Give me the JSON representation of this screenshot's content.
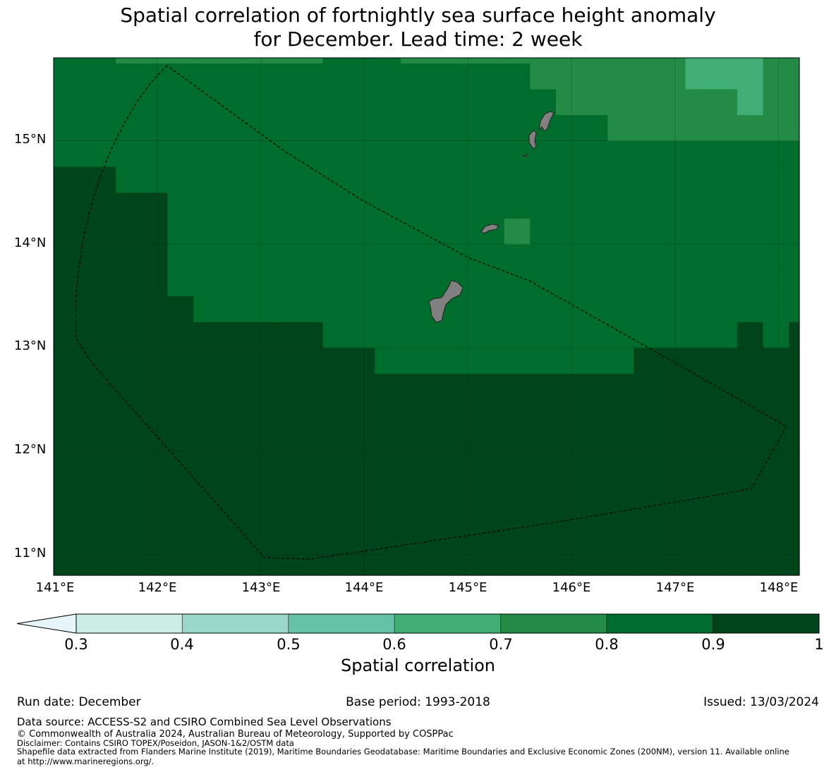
{
  "title": {
    "line1": "Spatial correlation of fortnightly sea surface height anomaly",
    "line2": "for December. Lead time: 2 week"
  },
  "map": {
    "lon_labels": [
      "141°E",
      "142°E",
      "143°E",
      "144°E",
      "145°E",
      "146°E",
      "147°E",
      "148°E"
    ],
    "lat_labels": [
      "15°N",
      "14°N",
      "13°N",
      "12°N",
      "11°N"
    ],
    "lon_range": [
      141.0,
      148.2
    ],
    "lat_range": [
      10.8,
      15.8
    ],
    "grid_step_deg": 0.25,
    "land_color": "#808080",
    "boundary_style": "dashed"
  },
  "colorbar": {
    "label": "Spatial correlation",
    "ticks": [
      "0.3",
      "0.4",
      "0.5",
      "0.6",
      "0.7",
      "0.8",
      "0.9",
      "1"
    ],
    "bins": [
      {
        "from": 0.3,
        "to": 0.4,
        "color": "#ccece6"
      },
      {
        "from": 0.4,
        "to": 0.5,
        "color": "#99d8c9"
      },
      {
        "from": 0.5,
        "to": 0.6,
        "color": "#66c2a4"
      },
      {
        "from": 0.6,
        "to": 0.7,
        "color": "#41ae76"
      },
      {
        "from": 0.7,
        "to": 0.8,
        "color": "#238b45"
      },
      {
        "from": 0.8,
        "to": 0.9,
        "color": "#006d2c"
      },
      {
        "from": 0.9,
        "to": 1.0,
        "color": "#00441b"
      }
    ],
    "extend_color": "#e5f5f9"
  },
  "footer": {
    "run_date": "Run date: December",
    "base_period": "Base period: 1993-2018",
    "issued": "Issued: 13/03/2024",
    "data_source": "Data source: ACCESS-S2 and CSIRO Combined Sea Level Observations",
    "copyright": "© Commonwealth of Australia 2024, Australian Bureau of Meteorology, Supported by COSPPac",
    "disclaimer": "Disclaimer: Contains CSIRO TOPEX/Poseidon, JASON-1&2/OSTM data",
    "shapefile_line1": "Shapefile data extracted from Flanders Marine Institute (2019), Maritime Boundaries Geodatabase: Maritime Boundaries and Exclusive Economic Zones (200NM), version 11. Available online",
    "shapefile_line2": "at http://www.marineregions.org/."
  }
}
